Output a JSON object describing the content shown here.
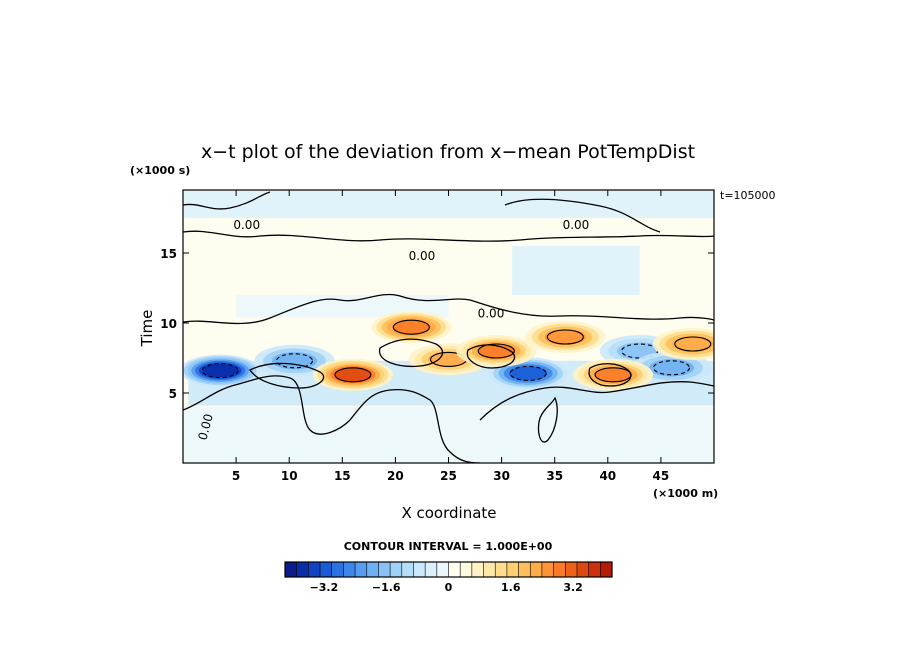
{
  "chart_data": {
    "type": "heatmap",
    "title": "x−t plot of the deviation from x−mean PotTempDist",
    "xlabel": "X coordinate",
    "ylabel": "Time",
    "x_unit_label": "(×1000 m)",
    "y_unit_label": "(×1000 s)",
    "time_label": "t=105000",
    "xlim": [
      0,
      50
    ],
    "ylim": [
      0,
      19.5
    ],
    "x_ticks": [
      5,
      10,
      15,
      20,
      25,
      30,
      35,
      40,
      45
    ],
    "y_ticks": [
      5,
      10,
      15
    ],
    "contour_interval_text": "CONTOUR INTERVAL = 1.000E+00",
    "contour_labels": [
      {
        "text": "0.00",
        "x": 6,
        "y": 16.7
      },
      {
        "text": "0.00",
        "x": 22.5,
        "y": 14.5
      },
      {
        "text": "0.00",
        "x": 37,
        "y": 16.7
      },
      {
        "text": "0.00",
        "x": 29,
        "y": 10.4
      },
      {
        "text": "0.00",
        "x": 2.5,
        "y": 2.5
      }
    ],
    "colorbar": {
      "range": [
        -4.2,
        4.2
      ],
      "tick_labels": [
        "−3.2",
        "−1.6",
        "0",
        "1.6",
        "3.2"
      ],
      "tick_values": [
        -3.2,
        -1.6,
        0,
        1.6,
        3.2
      ],
      "colors": [
        "#0b1b8c",
        "#0a2ca8",
        "#1042c2",
        "#1a5bd6",
        "#2a72e2",
        "#3d87ea",
        "#569cef",
        "#6fb0f2",
        "#88c2f5",
        "#a0d2f7",
        "#b6def9",
        "#cae8fa",
        "#dbf0fb",
        "#eaf7fc",
        "#fffef0",
        "#fffae0",
        "#fff3c6",
        "#ffe9a8",
        "#ffdd8c",
        "#ffcf72",
        "#ffbf5c",
        "#ffab48",
        "#ff9436",
        "#f97b27",
        "#ee6119",
        "#df4710",
        "#cc300b",
        "#b51c08"
      ]
    },
    "features": [
      {
        "sign": "neg",
        "x": 3.5,
        "y": 6.6,
        "amp": 4.0
      },
      {
        "sign": "neg",
        "x": 10.5,
        "y": 7.3,
        "amp": 2.0
      },
      {
        "sign": "neg",
        "x": 32.5,
        "y": 6.4,
        "amp": 3.2
      },
      {
        "sign": "neg",
        "x": 43.0,
        "y": 8.0,
        "amp": 1.6
      },
      {
        "sign": "neg",
        "x": 46.0,
        "y": 6.8,
        "amp": 2.0
      },
      {
        "sign": "pos",
        "x": 16.0,
        "y": 6.3,
        "amp": 3.4
      },
      {
        "sign": "pos",
        "x": 21.5,
        "y": 9.7,
        "amp": 3.0
      },
      {
        "sign": "pos",
        "x": 25.0,
        "y": 7.4,
        "amp": 2.2
      },
      {
        "sign": "pos",
        "x": 29.5,
        "y": 8.0,
        "amp": 2.8
      },
      {
        "sign": "pos",
        "x": 36.0,
        "y": 9.0,
        "amp": 2.6
      },
      {
        "sign": "pos",
        "x": 40.5,
        "y": 6.3,
        "amp": 2.8
      },
      {
        "sign": "pos",
        "x": 48.0,
        "y": 8.5,
        "amp": 2.4
      }
    ]
  }
}
